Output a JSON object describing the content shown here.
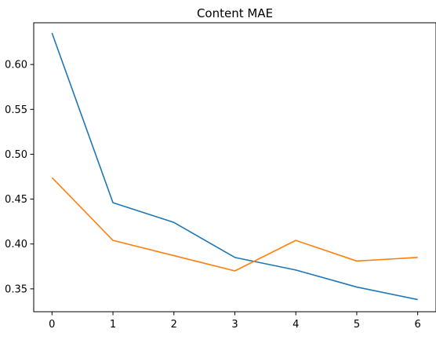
{
  "chart_data": {
    "type": "line",
    "title": "Content MAE",
    "xlabel": "",
    "ylabel": "",
    "x": [
      0,
      1,
      2,
      3,
      4,
      5,
      6
    ],
    "xlim": [
      -0.3,
      6.3
    ],
    "ylim": [
      0.3245,
      0.6465
    ],
    "xticks": [
      0,
      1,
      2,
      3,
      4,
      5,
      6
    ],
    "yticks": [
      0.35,
      0.4,
      0.45,
      0.5,
      0.55,
      0.6
    ],
    "grid": false,
    "series": [
      {
        "color": "#1f77b4",
        "values": [
          0.635,
          0.446,
          0.424,
          0.385,
          0.371,
          0.352,
          0.338
        ]
      },
      {
        "color": "#ff7f0e",
        "values": [
          0.474,
          0.404,
          0.387,
          0.37,
          0.404,
          0.381,
          0.385
        ]
      }
    ]
  }
}
